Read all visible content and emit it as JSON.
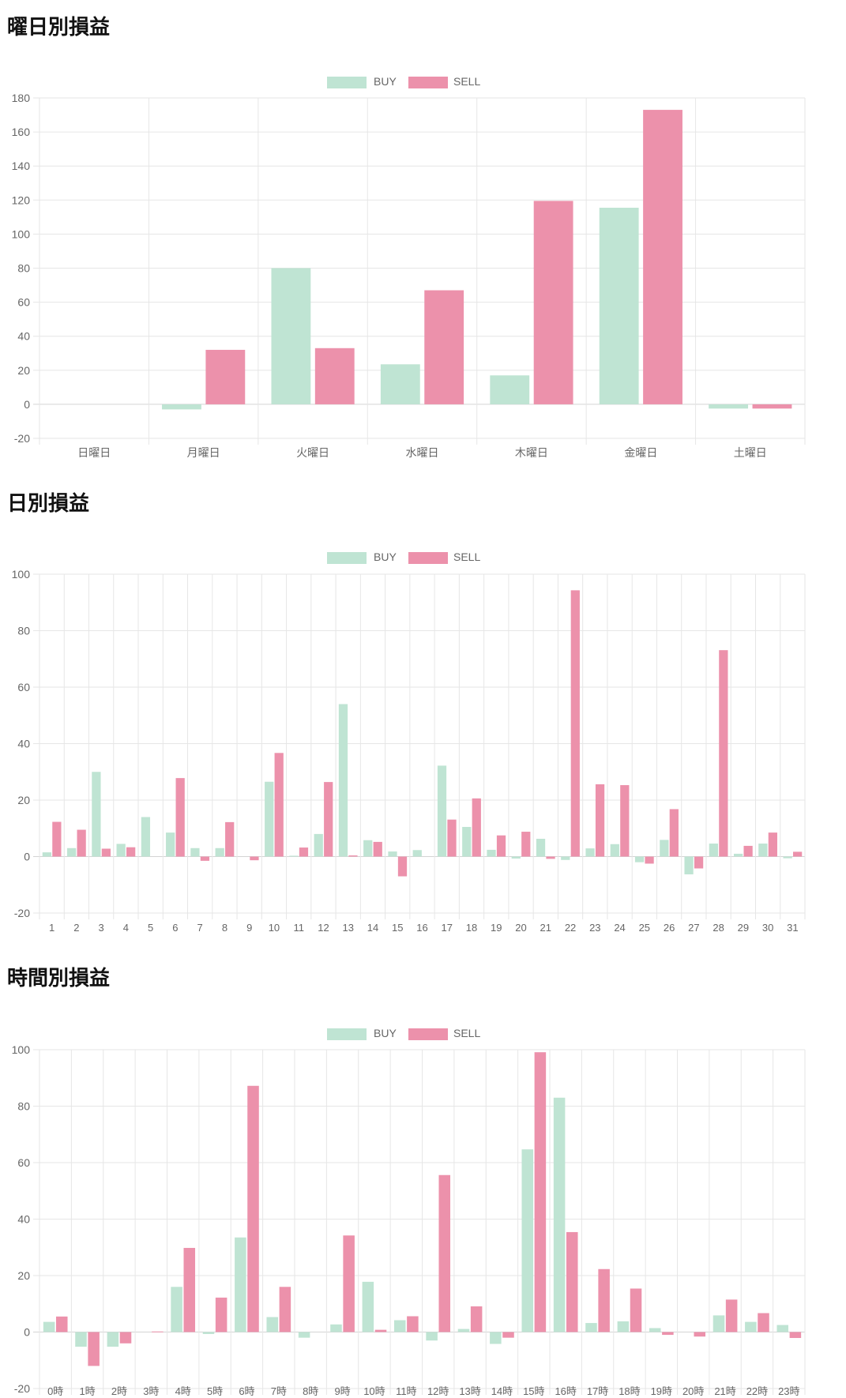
{
  "colors": {
    "buy": "#bfe4d3",
    "sell": "#ec91ab",
    "grid": "#e6e6e6",
    "zero": "#d4d4d4"
  },
  "chart_data": [
    {
      "type": "bar",
      "title": "曜日別損益",
      "legend": [
        "BUY",
        "SELL"
      ],
      "legend_position": "top",
      "grid": true,
      "categories": [
        "日曜日",
        "月曜日",
        "火曜日",
        "水曜日",
        "木曜日",
        "金曜日",
        "土曜日"
      ],
      "ylim": [
        -20,
        180
      ],
      "yticks": [
        180,
        160,
        140,
        120,
        100,
        80,
        60,
        40,
        20,
        0,
        -20
      ],
      "series": [
        {
          "name": "BUY",
          "values": [
            0,
            -3,
            80,
            23.5,
            17,
            115.5,
            -2.5
          ]
        },
        {
          "name": "SELL",
          "values": [
            0,
            32,
            33,
            67,
            119.5,
            173,
            -2.5
          ]
        }
      ]
    },
    {
      "type": "bar",
      "title": "日別損益",
      "legend": [
        "BUY",
        "SELL"
      ],
      "legend_position": "top",
      "grid": true,
      "categories": [
        "1",
        "2",
        "3",
        "4",
        "5",
        "6",
        "7",
        "8",
        "9",
        "10",
        "11",
        "12",
        "13",
        "14",
        "15",
        "16",
        "17",
        "18",
        "19",
        "20",
        "21",
        "22",
        "23",
        "24",
        "25",
        "26",
        "27",
        "28",
        "29",
        "30",
        "31"
      ],
      "ylim": [
        -20,
        100
      ],
      "yticks": [
        100,
        80,
        60,
        40,
        20,
        0,
        -20
      ],
      "series": [
        {
          "name": "BUY",
          "values": [
            1.5,
            3,
            30,
            4.5,
            14,
            8.5,
            3,
            3,
            0,
            26.5,
            0.3,
            8,
            54,
            5.8,
            1.8,
            2.3,
            32.2,
            10.5,
            2.4,
            -0.7,
            6.3,
            -1.2,
            2.9,
            4.4,
            -2,
            5.9,
            -6.3,
            4.6,
            1,
            4.6,
            -0.6
          ]
        },
        {
          "name": "SELL",
          "values": [
            12.3,
            9.5,
            2.8,
            3.3,
            0,
            27.8,
            -1.5,
            12.2,
            -1.3,
            36.7,
            3.2,
            26.4,
            0.4,
            5.2,
            -7,
            0,
            13.1,
            20.6,
            7.5,
            8.8,
            -0.8,
            94.3,
            25.6,
            25.3,
            -2.5,
            16.8,
            -4.2,
            73.1,
            3.8,
            8.5,
            1.7
          ]
        }
      ]
    },
    {
      "type": "bar",
      "title": "時間別損益",
      "legend": [
        "BUY",
        "SELL"
      ],
      "legend_position": "top",
      "grid": true,
      "categories": [
        "0時",
        "1時",
        "2時",
        "3時",
        "4時",
        "5時",
        "6時",
        "7時",
        "8時",
        "9時",
        "10時",
        "11時",
        "12時",
        "13時",
        "14時",
        "15時",
        "16時",
        "17時",
        "18時",
        "19時",
        "20時",
        "21時",
        "22時",
        "23時"
      ],
      "ylim": [
        -20,
        100
      ],
      "yticks": [
        100,
        80,
        60,
        40,
        20,
        0,
        -20
      ],
      "series": [
        {
          "name": "BUY",
          "values": [
            3.6,
            -5.2,
            -5.2,
            0,
            16,
            -0.7,
            33.5,
            5.3,
            -2,
            2.7,
            17.8,
            4.2,
            -3,
            1.1,
            -4.2,
            64.7,
            83,
            3.2,
            3.8,
            1.4,
            0,
            5.9,
            3.6,
            2.5
          ]
        },
        {
          "name": "SELL",
          "values": [
            5.5,
            -12,
            -4,
            0.2,
            29.8,
            12.2,
            87.2,
            16,
            0,
            34.2,
            0.8,
            5.6,
            55.6,
            9.1,
            -2,
            99.1,
            35.4,
            22.3,
            15.4,
            -1,
            -1.6,
            11.5,
            6.7,
            -2.1
          ]
        }
      ]
    }
  ]
}
